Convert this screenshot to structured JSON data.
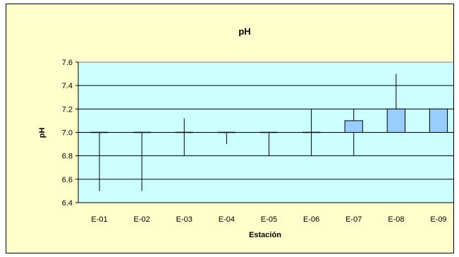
{
  "chart_data": {
    "type": "box",
    "title": "pH",
    "xlabel": "Estación",
    "ylabel": "pH",
    "ylim": [
      6.4,
      7.6
    ],
    "yticks": [
      "6.4",
      "6.6",
      "6.8",
      "7.0",
      "7.2",
      "7.4",
      "7.6"
    ],
    "grid": true,
    "colors": {
      "chart_background": "#ffffcc",
      "plot_background": "#ccffff",
      "box_fill": "#99ccff",
      "gridline": "#000000"
    },
    "categories": [
      "E-01",
      "E-02",
      "E-03",
      "E-04",
      "E-05",
      "E-06",
      "E-07",
      "E-08",
      "E-09"
    ],
    "series": [
      {
        "min": 6.5,
        "q1": 7.0,
        "q3": 7.0,
        "max": 7.0
      },
      {
        "min": 6.5,
        "q1": 7.0,
        "q3": 7.0,
        "max": 7.0
      },
      {
        "min": 6.8,
        "q1": 7.0,
        "q3": 7.0,
        "max": 7.12
      },
      {
        "min": 6.9,
        "q1": 7.0,
        "q3": 7.0,
        "max": 7.0
      },
      {
        "min": 6.8,
        "q1": 7.0,
        "q3": 7.0,
        "max": 7.0
      },
      {
        "min": 6.8,
        "q1": 7.0,
        "q3": 7.0,
        "max": 7.2
      },
      {
        "min": 6.8,
        "q1": 7.0,
        "q3": 7.1,
        "max": 7.2
      },
      {
        "min": 7.0,
        "q1": 7.0,
        "q3": 7.2,
        "max": 7.5
      },
      {
        "min": 7.0,
        "q1": 7.0,
        "q3": 7.2,
        "max": 7.2
      }
    ]
  }
}
